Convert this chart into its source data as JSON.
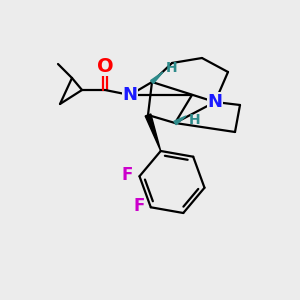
{
  "bg_color": "#ececec",
  "atom_colors": {
    "O": "#ff0000",
    "N": "#1a1aff",
    "F": "#cc00cc",
    "H_stereo": "#2e8b8b",
    "C": "#000000"
  },
  "bond_color": "#000000",
  "lw": 1.6,
  "figsize": [
    3.0,
    3.0
  ],
  "dpi": 100
}
